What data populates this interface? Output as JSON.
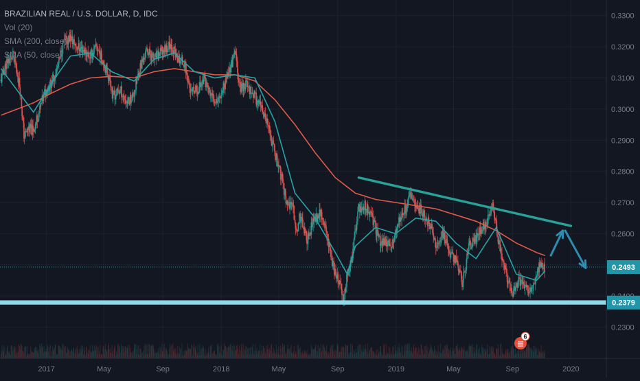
{
  "legend": {
    "symbol": "BRAZILIAN REAL / U.S. DOLLAR, D, IDC",
    "volume": "Vol (20)",
    "sma200": "SMA (200, close)",
    "sma50": "SMA (50, close)"
  },
  "colors": {
    "background": "#131722",
    "grid": "#1e222d",
    "axis_text": "#787b86",
    "candle_up": "#26a69a",
    "candle_down": "#ef5350",
    "sma200": "#e05a47",
    "sma50": "#27a3a7",
    "trendline": "#2aa198",
    "support": "#8ed8e8",
    "arrows": "#2e8cb0",
    "price_label_bg": "#2196a8",
    "badge": "#e84e3c"
  },
  "price_labels": {
    "current": "0.2493",
    "support": "0.2379"
  },
  "badge": {
    "count": "6"
  },
  "chart_data": {
    "type": "candlestick",
    "ylim": [
      0.22,
      0.335
    ],
    "y_ticks": [
      "0.3300",
      "0.3200",
      "0.3100",
      "0.3000",
      "0.2900",
      "0.2800",
      "0.2700",
      "0.2600",
      "0.2500",
      "0.2400",
      "0.2300"
    ],
    "x_ticks": [
      "2017",
      "May",
      "Sep",
      "2018",
      "May",
      "Sep",
      "2019",
      "May",
      "Sep",
      "2020"
    ],
    "series": [
      {
        "name": "BRAZILIAN REAL / U.S. DOLLAR, D, IDC",
        "kind": "price",
        "points": [
          [
            "2016-09-28",
            0.309
          ],
          [
            "2016-10-10",
            0.315
          ],
          [
            "2016-10-24",
            0.317
          ],
          [
            "2016-11-01",
            0.312
          ],
          [
            "2016-11-07",
            0.307
          ],
          [
            "2016-11-16",
            0.291
          ],
          [
            "2016-11-25",
            0.294
          ],
          [
            "2016-12-05",
            0.293
          ],
          [
            "2016-12-15",
            0.298
          ],
          [
            "2016-12-28",
            0.305
          ],
          [
            "2017-01-10",
            0.308
          ],
          [
            "2017-01-24",
            0.313
          ],
          [
            "2017-02-06",
            0.321
          ],
          [
            "2017-02-20",
            0.323
          ],
          [
            "2017-03-06",
            0.32
          ],
          [
            "2017-03-20",
            0.319
          ],
          [
            "2017-04-03",
            0.317
          ],
          [
            "2017-04-17",
            0.32
          ],
          [
            "2017-05-01",
            0.315
          ],
          [
            "2017-05-17",
            0.308
          ],
          [
            "2017-05-19",
            0.304
          ],
          [
            "2017-06-05",
            0.306
          ],
          [
            "2017-06-19",
            0.302
          ],
          [
            "2017-07-03",
            0.305
          ],
          [
            "2017-07-17",
            0.314
          ],
          [
            "2017-07-31",
            0.319
          ],
          [
            "2017-08-14",
            0.316
          ],
          [
            "2017-08-28",
            0.318
          ],
          [
            "2017-09-11",
            0.32
          ],
          [
            "2017-09-18",
            0.321
          ],
          [
            "2017-10-02",
            0.316
          ],
          [
            "2017-10-16",
            0.315
          ],
          [
            "2017-10-30",
            0.305
          ],
          [
            "2017-11-13",
            0.306
          ],
          [
            "2017-11-27",
            0.31
          ],
          [
            "2017-12-11",
            0.304
          ],
          [
            "2017-12-26",
            0.303
          ],
          [
            "2018-01-08",
            0.308
          ],
          [
            "2018-01-22",
            0.314
          ],
          [
            "2018-01-31",
            0.318
          ],
          [
            "2018-02-09",
            0.307
          ],
          [
            "2018-02-23",
            0.308
          ],
          [
            "2018-03-09",
            0.305
          ],
          [
            "2018-03-23",
            0.301
          ],
          [
            "2018-04-06",
            0.296
          ],
          [
            "2018-04-20",
            0.288
          ],
          [
            "2018-05-04",
            0.28
          ],
          [
            "2018-05-18",
            0.27
          ],
          [
            "2018-06-01",
            0.268
          ],
          [
            "2018-06-08",
            0.26
          ],
          [
            "2018-06-15",
            0.266
          ],
          [
            "2018-06-29",
            0.258
          ],
          [
            "2018-07-13",
            0.264
          ],
          [
            "2018-07-27",
            0.267
          ],
          [
            "2018-08-10",
            0.26
          ],
          [
            "2018-08-24",
            0.249
          ],
          [
            "2018-09-07",
            0.243
          ],
          [
            "2018-09-13",
            0.239
          ],
          [
            "2018-09-21",
            0.246
          ],
          [
            "2018-10-01",
            0.252
          ],
          [
            "2018-10-15",
            0.268
          ],
          [
            "2018-10-29",
            0.269
          ],
          [
            "2018-11-12",
            0.266
          ],
          [
            "2018-11-26",
            0.258
          ],
          [
            "2018-12-10",
            0.257
          ],
          [
            "2018-12-24",
            0.256
          ],
          [
            "2019-01-07",
            0.264
          ],
          [
            "2019-01-21",
            0.268
          ],
          [
            "2019-02-01",
            0.272
          ],
          [
            "2019-02-15",
            0.269
          ],
          [
            "2019-03-01",
            0.266
          ],
          [
            "2019-03-15",
            0.262
          ],
          [
            "2019-03-27",
            0.256
          ],
          [
            "2019-04-10",
            0.26
          ],
          [
            "2019-04-24",
            0.254
          ],
          [
            "2019-05-08",
            0.251
          ],
          [
            "2019-05-20",
            0.244
          ],
          [
            "2019-06-03",
            0.256
          ],
          [
            "2019-06-17",
            0.259
          ],
          [
            "2019-07-01",
            0.262
          ],
          [
            "2019-07-15",
            0.265
          ],
          [
            "2019-07-22",
            0.269
          ],
          [
            "2019-08-05",
            0.256
          ],
          [
            "2019-08-19",
            0.247
          ],
          [
            "2019-09-02",
            0.241
          ],
          [
            "2019-09-16",
            0.245
          ],
          [
            "2019-09-30",
            0.242
          ],
          [
            "2019-10-14",
            0.243
          ],
          [
            "2019-10-28",
            0.25
          ],
          [
            "2019-11-08",
            0.249
          ]
        ]
      },
      {
        "name": "SMA (200, close)",
        "kind": "line",
        "points": [
          [
            "2016-09-28",
            0.298
          ],
          [
            "2016-11-01",
            0.3
          ],
          [
            "2016-12-05",
            0.302
          ],
          [
            "2017-01-10",
            0.305
          ],
          [
            "2017-02-20",
            0.308
          ],
          [
            "2017-04-03",
            0.31
          ],
          [
            "2017-05-17",
            0.3105
          ],
          [
            "2017-07-03",
            0.31
          ],
          [
            "2017-08-14",
            0.312
          ],
          [
            "2017-09-25",
            0.313
          ],
          [
            "2017-11-06",
            0.312
          ],
          [
            "2017-12-18",
            0.311
          ],
          [
            "2018-01-29",
            0.311
          ],
          [
            "2018-03-12",
            0.309
          ],
          [
            "2018-04-23",
            0.303
          ],
          [
            "2018-06-04",
            0.295
          ],
          [
            "2018-07-16",
            0.286
          ],
          [
            "2018-08-27",
            0.278
          ],
          [
            "2018-10-08",
            0.273
          ],
          [
            "2018-11-19",
            0.271
          ],
          [
            "2018-12-31",
            0.27
          ],
          [
            "2019-02-11",
            0.269
          ],
          [
            "2019-03-25",
            0.268
          ],
          [
            "2019-05-06",
            0.266
          ],
          [
            "2019-06-17",
            0.264
          ],
          [
            "2019-07-29",
            0.261
          ],
          [
            "2019-09-09",
            0.257
          ],
          [
            "2019-10-21",
            0.254
          ],
          [
            "2019-11-08",
            0.253
          ]
        ]
      },
      {
        "name": "SMA (50, close)",
        "kind": "line",
        "points": [
          [
            "2016-09-28",
            0.313
          ],
          [
            "2016-11-01",
            0.306
          ],
          [
            "2016-12-05",
            0.299
          ],
          [
            "2017-01-10",
            0.308
          ],
          [
            "2017-02-20",
            0.317
          ],
          [
            "2017-04-03",
            0.318
          ],
          [
            "2017-05-17",
            0.312
          ],
          [
            "2017-07-03",
            0.309
          ],
          [
            "2017-08-14",
            0.316
          ],
          [
            "2017-09-25",
            0.318
          ],
          [
            "2017-11-06",
            0.312
          ],
          [
            "2017-12-18",
            0.31
          ],
          [
            "2018-01-29",
            0.311
          ],
          [
            "2018-03-12",
            0.31
          ],
          [
            "2018-04-23",
            0.296
          ],
          [
            "2018-06-04",
            0.273
          ],
          [
            "2018-07-16",
            0.265
          ],
          [
            "2018-08-27",
            0.254
          ],
          [
            "2018-09-21",
            0.247
          ],
          [
            "2018-10-08",
            0.256
          ],
          [
            "2018-11-19",
            0.262
          ],
          [
            "2018-12-31",
            0.26
          ],
          [
            "2019-02-11",
            0.265
          ],
          [
            "2019-03-25",
            0.264
          ],
          [
            "2019-05-06",
            0.257
          ],
          [
            "2019-06-17",
            0.252
          ],
          [
            "2019-07-29",
            0.262
          ],
          [
            "2019-09-09",
            0.247
          ],
          [
            "2019-10-21",
            0.245
          ],
          [
            "2019-11-08",
            0.248
          ]
        ]
      }
    ],
    "annotations": {
      "trendline": {
        "from": [
          "2018-10-15",
          0.278
        ],
        "to": [
          "2020-01-01",
          0.2625
        ]
      },
      "support_line": {
        "value": 0.2379
      },
      "current_price_line": {
        "value": 0.2493
      },
      "arrow_up": {
        "from": [
          "2019-11-20",
          0.253
        ],
        "to": [
          "2019-12-15",
          0.261
        ]
      },
      "arrow_down": {
        "from": [
          "2019-12-20",
          0.261
        ],
        "to": [
          "2020-02-01",
          0.249
        ]
      }
    }
  }
}
